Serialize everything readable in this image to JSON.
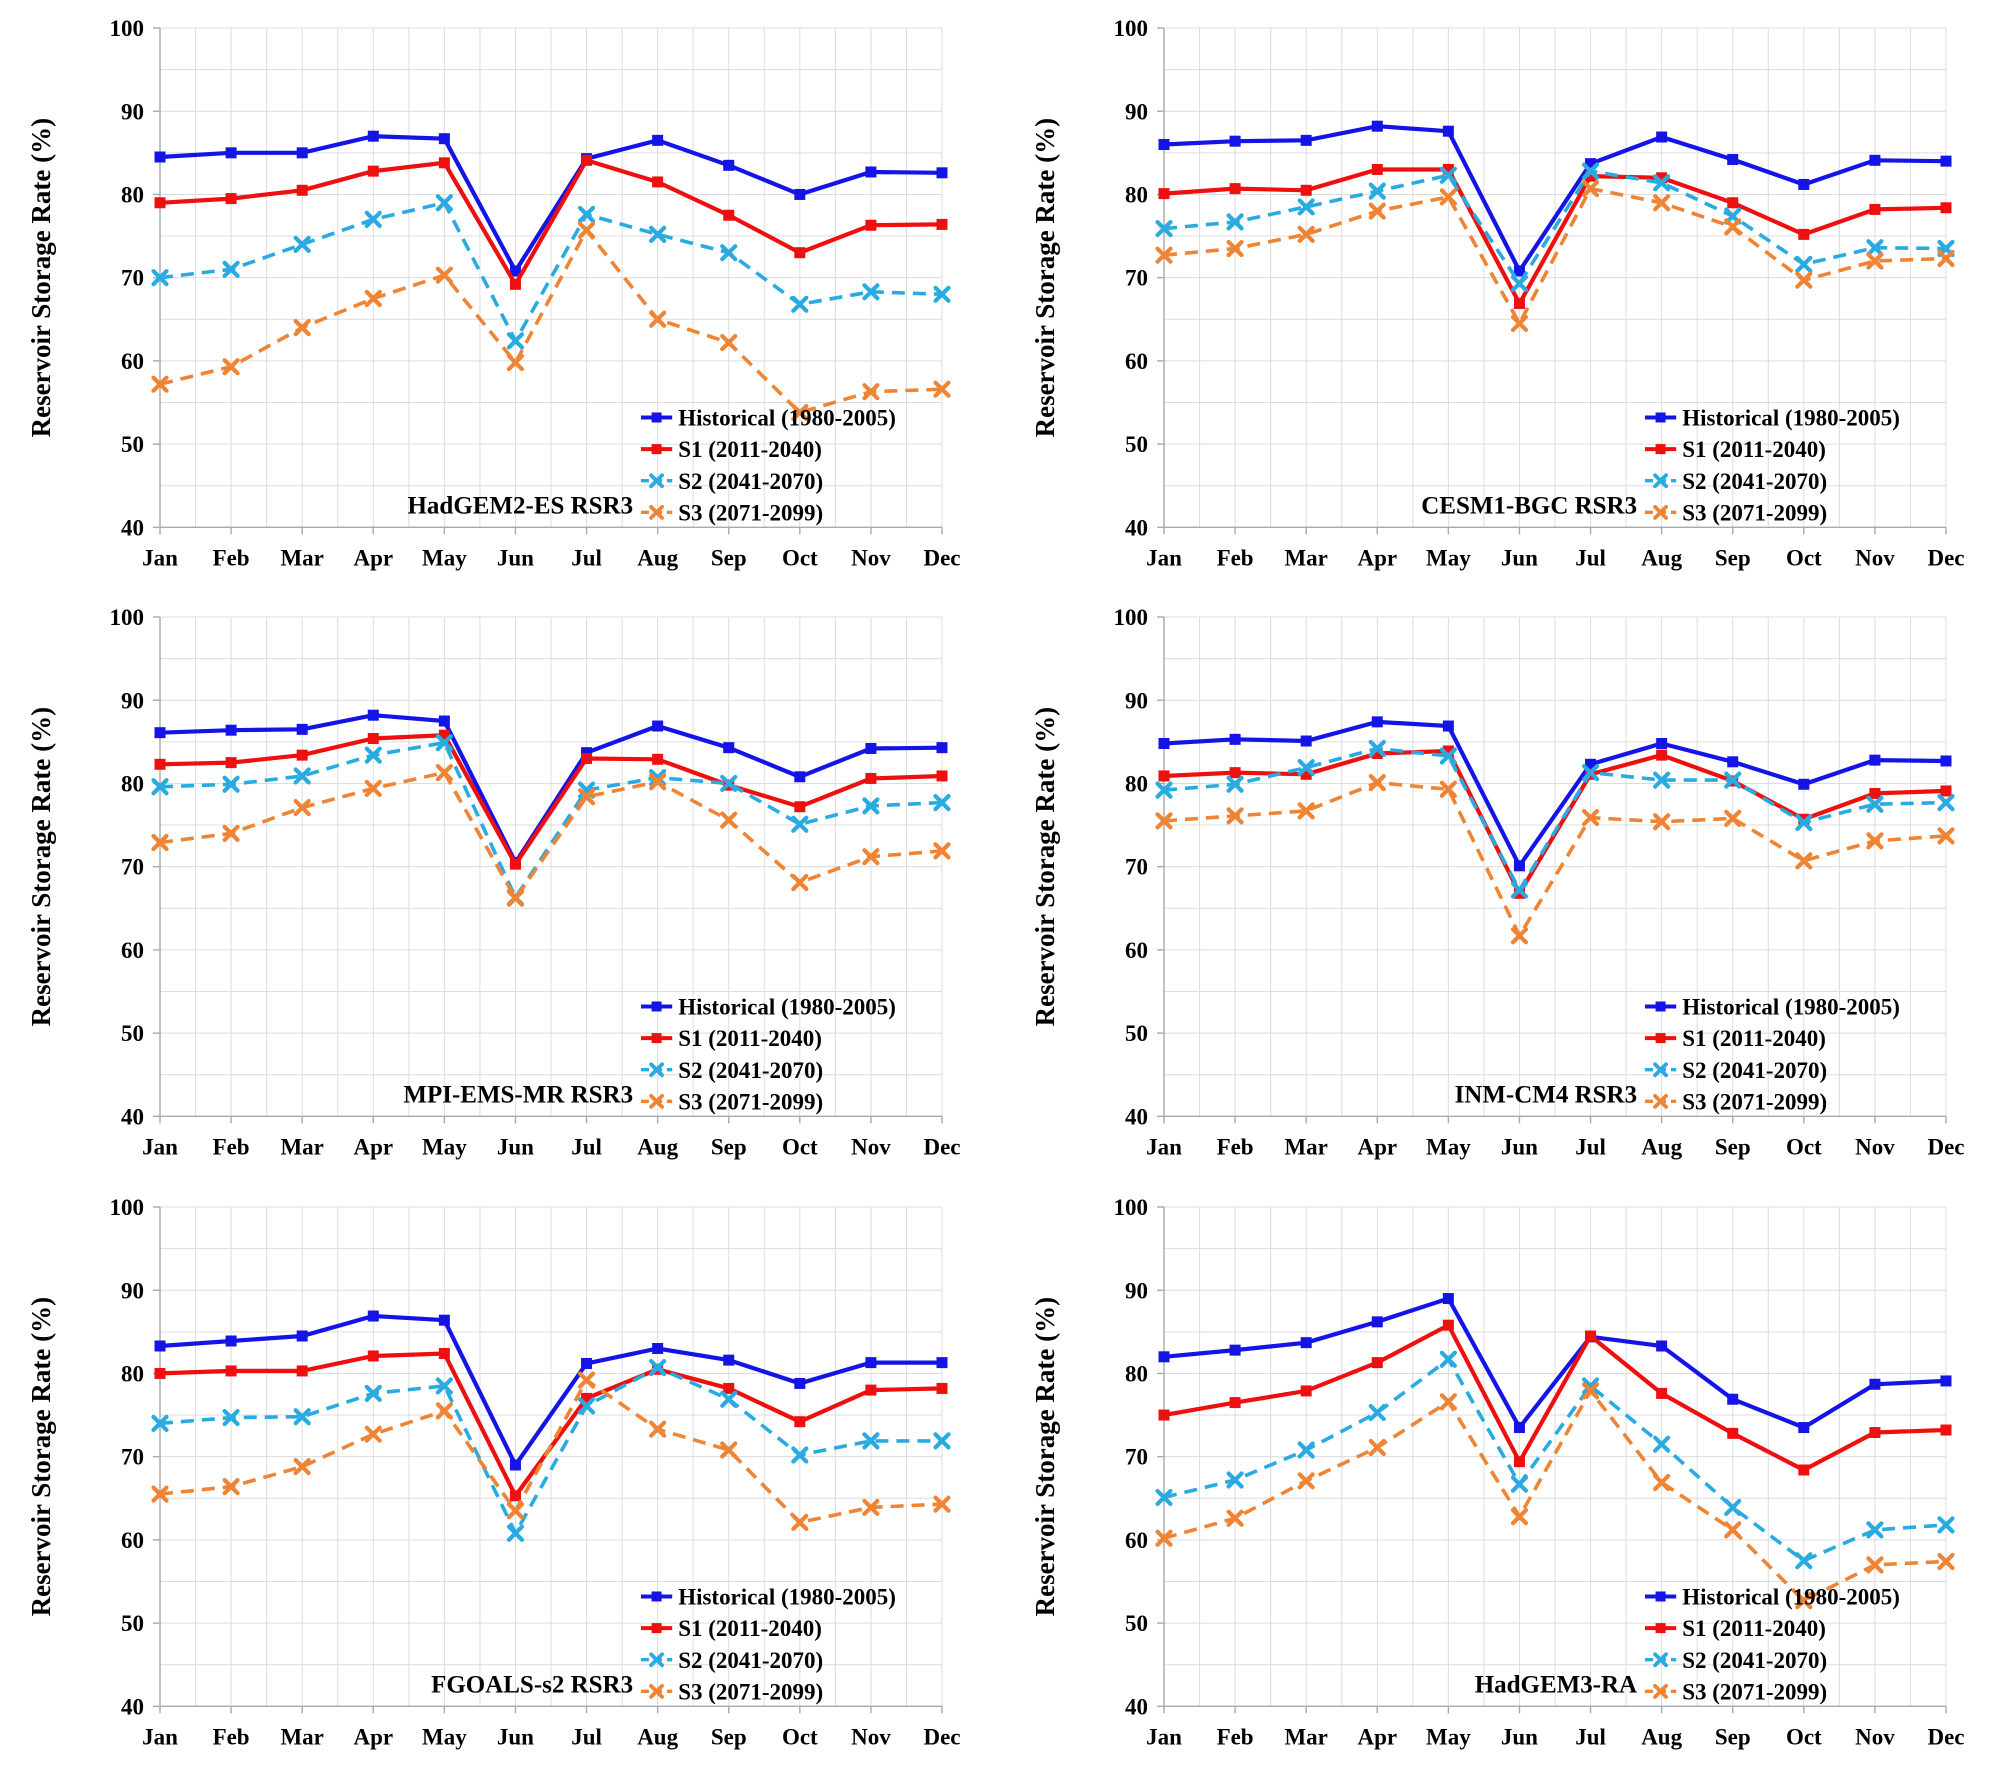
{
  "ylabel": "Reservoir Storage Rate (%)",
  "months": [
    "Jan",
    "Feb",
    "Mar",
    "Apr",
    "May",
    "Jun",
    "Jul",
    "Aug",
    "Sep",
    "Oct",
    "Nov",
    "Dec"
  ],
  "y_axis": {
    "min": 40,
    "max": 100,
    "major_step": 10,
    "minor_step": 5,
    "ticks": [
      100,
      90,
      80,
      70,
      60,
      50,
      40
    ]
  },
  "colors": {
    "historical": "#1414E6",
    "s1": "#EE0F0F",
    "s2": "#29ABE2",
    "s3": "#EE8434",
    "grid": "#DCDCDC",
    "axis": "#A9A9A9",
    "text": "#000000",
    "background": "#FFFFFF"
  },
  "series_styles": {
    "historical": {
      "line": "solid",
      "marker": "square"
    },
    "s1": {
      "line": "solid",
      "marker": "square"
    },
    "s2": {
      "line": "dashed",
      "marker": "x"
    },
    "s3": {
      "line": "dashed",
      "marker": "x"
    }
  },
  "chart_data": [
    {
      "type": "line",
      "title": "HadGEM2-ES RSR3",
      "xlabel": "",
      "ylabel": "Reservoir Storage Rate (%)",
      "ylim": [
        40,
        100
      ],
      "grid": true,
      "legend_position": "lower right",
      "categories": [
        "Jan",
        "Feb",
        "Mar",
        "Apr",
        "May",
        "Jun",
        "Jul",
        "Aug",
        "Sep",
        "Oct",
        "Nov",
        "Dec"
      ],
      "series": [
        {
          "name": "Historical (1980-2005)",
          "style": "historical",
          "values": [
            84.5,
            85.0,
            85.0,
            87.0,
            86.7,
            70.8,
            84.3,
            86.5,
            83.5,
            80.0,
            82.7,
            82.6
          ]
        },
        {
          "name": "S1 (2011-2040)",
          "style": "s1",
          "values": [
            79.0,
            79.5,
            80.5,
            82.8,
            83.8,
            69.2,
            84.1,
            81.5,
            77.5,
            73.0,
            76.3,
            76.4
          ]
        },
        {
          "name": "S2 (2041-2070)",
          "style": "s2",
          "values": [
            70.0,
            71.0,
            74.0,
            77.0,
            79.0,
            62.4,
            77.6,
            75.2,
            73.0,
            66.8,
            68.3,
            68.0
          ]
        },
        {
          "name": "S3 (2071-2099)",
          "style": "s3",
          "values": [
            57.2,
            59.3,
            64.0,
            67.5,
            70.3,
            59.8,
            75.7,
            65.0,
            62.2,
            53.8,
            56.3,
            56.6
          ]
        }
      ]
    },
    {
      "type": "line",
      "title": "CESM1-BGC RSR3",
      "xlabel": "",
      "ylabel": "Reservoir Storage Rate (%)",
      "ylim": [
        40,
        100
      ],
      "grid": true,
      "legend_position": "lower right",
      "categories": [
        "Jan",
        "Feb",
        "Mar",
        "Apr",
        "May",
        "Jun",
        "Jul",
        "Aug",
        "Sep",
        "Oct",
        "Nov",
        "Dec"
      ],
      "series": [
        {
          "name": "Historical (1980-2005)",
          "style": "historical",
          "values": [
            86.0,
            86.4,
            86.5,
            88.2,
            87.6,
            70.8,
            83.7,
            86.9,
            84.2,
            81.2,
            84.1,
            84.0
          ]
        },
        {
          "name": "S1 (2011-2040)",
          "style": "s1",
          "values": [
            80.1,
            80.7,
            80.5,
            83.0,
            83.0,
            66.9,
            82.2,
            82.0,
            79.0,
            75.2,
            78.2,
            78.4
          ]
        },
        {
          "name": "S2 (2041-2070)",
          "style": "s2",
          "values": [
            75.9,
            76.7,
            78.5,
            80.4,
            82.3,
            69.3,
            82.8,
            81.4,
            77.4,
            71.6,
            73.6,
            73.5
          ]
        },
        {
          "name": "S3 (2071-2099)",
          "style": "s3",
          "values": [
            72.7,
            73.5,
            75.2,
            78.0,
            79.7,
            64.5,
            80.7,
            79.0,
            76.1,
            69.7,
            72.0,
            72.3
          ]
        }
      ]
    },
    {
      "type": "line",
      "title": "MPI-EMS-MR RSR3",
      "xlabel": "",
      "ylabel": "Reservoir Storage Rate (%)",
      "ylim": [
        40,
        100
      ],
      "grid": true,
      "legend_position": "lower right",
      "categories": [
        "Jan",
        "Feb",
        "Mar",
        "Apr",
        "May",
        "Jun",
        "Jul",
        "Aug",
        "Sep",
        "Oct",
        "Nov",
        "Dec"
      ],
      "series": [
        {
          "name": "Historical (1980-2005)",
          "style": "historical",
          "values": [
            86.1,
            86.4,
            86.5,
            88.2,
            87.5,
            70.5,
            83.7,
            86.9,
            84.3,
            80.8,
            84.2,
            84.3
          ]
        },
        {
          "name": "S1 (2011-2040)",
          "style": "s1",
          "values": [
            82.3,
            82.5,
            83.4,
            85.4,
            85.8,
            70.3,
            83.0,
            82.9,
            79.8,
            77.2,
            80.6,
            80.9
          ]
        },
        {
          "name": "S2 (2041-2070)",
          "style": "s2",
          "values": [
            79.6,
            79.9,
            80.9,
            83.4,
            84.9,
            66.3,
            79.2,
            80.7,
            80.0,
            75.1,
            77.3,
            77.7
          ]
        },
        {
          "name": "S3 (2071-2099)",
          "style": "s3",
          "values": [
            72.9,
            74.0,
            77.1,
            79.4,
            81.3,
            66.2,
            78.4,
            80.2,
            75.6,
            68.1,
            71.2,
            71.9
          ]
        }
      ]
    },
    {
      "type": "line",
      "title": "INM-CM4 RSR3",
      "xlabel": "",
      "ylabel": "Reservoir Storage Rate (%)",
      "ylim": [
        40,
        100
      ],
      "grid": true,
      "legend_position": "lower right",
      "categories": [
        "Jan",
        "Feb",
        "Mar",
        "Apr",
        "May",
        "Jun",
        "Jul",
        "Aug",
        "Sep",
        "Oct",
        "Nov",
        "Dec"
      ],
      "series": [
        {
          "name": "Historical (1980-2005)",
          "style": "historical",
          "values": [
            84.8,
            85.3,
            85.1,
            87.4,
            86.9,
            70.1,
            82.3,
            84.8,
            82.6,
            79.9,
            82.8,
            82.7
          ]
        },
        {
          "name": "S1 (2011-2040)",
          "style": "s1",
          "values": [
            80.9,
            81.3,
            81.1,
            83.6,
            83.9,
            66.8,
            81.1,
            83.4,
            80.3,
            75.7,
            78.8,
            79.1
          ]
        },
        {
          "name": "S2 (2041-2070)",
          "style": "s2",
          "values": [
            79.2,
            79.9,
            81.9,
            84.2,
            83.3,
            67.2,
            81.3,
            80.4,
            80.4,
            75.3,
            77.5,
            77.7
          ]
        },
        {
          "name": "S3 (2071-2099)",
          "style": "s3",
          "values": [
            75.5,
            76.1,
            76.7,
            80.1,
            79.3,
            61.7,
            75.9,
            75.4,
            75.8,
            70.7,
            73.1,
            73.7
          ]
        }
      ]
    },
    {
      "type": "line",
      "title": "FGOALS-s2 RSR3",
      "xlabel": "",
      "ylabel": "Reservoir Storage Rate (%)",
      "ylim": [
        40,
        100
      ],
      "grid": true,
      "legend_position": "lower right",
      "categories": [
        "Jan",
        "Feb",
        "Mar",
        "Apr",
        "May",
        "Jun",
        "Jul",
        "Aug",
        "Sep",
        "Oct",
        "Nov",
        "Dec"
      ],
      "series": [
        {
          "name": "Historical (1980-2005)",
          "style": "historical",
          "values": [
            83.3,
            83.9,
            84.5,
            86.9,
            86.4,
            69.0,
            81.2,
            83.0,
            81.6,
            78.8,
            81.3,
            81.3
          ]
        },
        {
          "name": "S1 (2011-2040)",
          "style": "s1",
          "values": [
            80.0,
            80.3,
            80.3,
            82.1,
            82.4,
            65.3,
            77.0,
            80.5,
            78.2,
            74.2,
            78.0,
            78.2
          ]
        },
        {
          "name": "S2 (2041-2070)",
          "style": "s2",
          "values": [
            74.0,
            74.7,
            74.8,
            77.6,
            78.5,
            60.8,
            76.1,
            80.7,
            76.9,
            70.2,
            71.9,
            71.9
          ]
        },
        {
          "name": "S3 (2071-2099)",
          "style": "s3",
          "values": [
            65.5,
            66.4,
            68.8,
            72.7,
            75.5,
            63.5,
            79.2,
            73.3,
            70.8,
            62.1,
            63.9,
            64.3
          ]
        }
      ]
    },
    {
      "type": "line",
      "title": "HadGEM3-RA",
      "xlabel": "",
      "ylabel": "Reservoir Storage Rate (%)",
      "ylim": [
        40,
        100
      ],
      "grid": true,
      "legend_position": "lower right",
      "categories": [
        "Jan",
        "Feb",
        "Mar",
        "Apr",
        "May",
        "Jun",
        "Jul",
        "Aug",
        "Sep",
        "Oct",
        "Nov",
        "Dec"
      ],
      "series": [
        {
          "name": "Historical (1980-2005)",
          "style": "historical",
          "values": [
            82.0,
            82.8,
            83.7,
            86.2,
            89.0,
            73.5,
            84.4,
            83.3,
            76.9,
            73.5,
            78.7,
            79.1
          ]
        },
        {
          "name": "S1 (2011-2040)",
          "style": "s1",
          "values": [
            75.0,
            76.5,
            77.9,
            81.3,
            85.8,
            69.4,
            84.5,
            77.6,
            72.8,
            68.4,
            72.9,
            73.2
          ]
        },
        {
          "name": "S2 (2041-2070)",
          "style": "s2",
          "values": [
            65.1,
            67.2,
            70.8,
            75.3,
            81.7,
            66.7,
            78.5,
            71.5,
            63.9,
            57.5,
            61.2,
            61.8
          ]
        },
        {
          "name": "S3 (2071-2099)",
          "style": "s3",
          "values": [
            60.2,
            62.6,
            67.1,
            71.1,
            76.6,
            62.8,
            77.9,
            66.9,
            61.2,
            52.7,
            57.0,
            57.4
          ]
        }
      ]
    }
  ]
}
